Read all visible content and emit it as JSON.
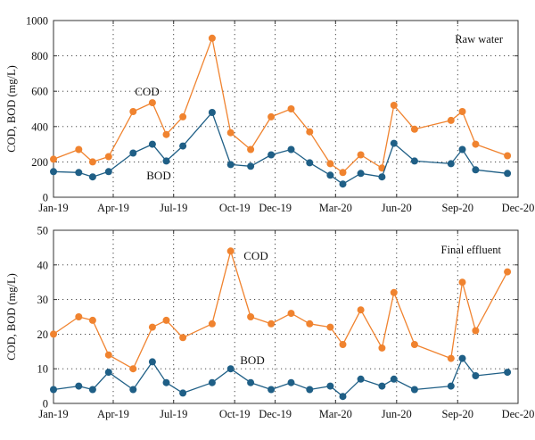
{
  "chart_data": [
    {
      "type": "line",
      "title": "Raw water",
      "ylabel": "COD, BOD (mg/L)",
      "ylim": [
        0,
        1000
      ],
      "yticks": [
        0,
        200,
        400,
        600,
        800,
        1000
      ],
      "xlim": [
        "2019-01",
        "2020-12"
      ],
      "xticks": [
        "Jan-19",
        "Apr-19",
        "Jul-19",
        "Oct-19",
        "Dec-19",
        "Mar-20",
        "Jun-20",
        "Sep-20",
        "Dec-20"
      ],
      "grid": true,
      "series": [
        {
          "name": "COD",
          "color": "#f0832f",
          "points": [
            [
              "2019-01-01",
              215
            ],
            [
              "2019-02-08",
              270
            ],
            [
              "2019-03-01",
              200
            ],
            [
              "2019-03-25",
              230
            ],
            [
              "2019-05-01",
              485
            ],
            [
              "2019-05-30",
              535
            ],
            [
              "2019-06-20",
              355
            ],
            [
              "2019-07-15",
              455
            ],
            [
              "2019-08-28",
              900
            ],
            [
              "2019-09-25",
              365
            ],
            [
              "2019-10-25",
              270
            ],
            [
              "2019-11-25",
              455
            ],
            [
              "2019-12-25",
              500
            ],
            [
              "2020-01-22",
              370
            ],
            [
              "2020-02-22",
              190
            ],
            [
              "2020-03-12",
              140
            ],
            [
              "2020-04-08",
              240
            ],
            [
              "2020-05-10",
              165
            ],
            [
              "2020-05-28",
              520
            ],
            [
              "2020-06-28",
              385
            ],
            [
              "2020-08-22",
              435
            ],
            [
              "2020-09-08",
              485
            ],
            [
              "2020-09-28",
              300
            ],
            [
              "2020-11-15",
              235
            ]
          ]
        },
        {
          "name": "BOD",
          "color": "#1f5f86",
          "points": [
            [
              "2019-01-01",
              145
            ],
            [
              "2019-02-08",
              140
            ],
            [
              "2019-03-01",
              115
            ],
            [
              "2019-03-25",
              145
            ],
            [
              "2019-05-01",
              250
            ],
            [
              "2019-05-30",
              300
            ],
            [
              "2019-06-20",
              205
            ],
            [
              "2019-07-15",
              290
            ],
            [
              "2019-08-28",
              480
            ],
            [
              "2019-09-25",
              185
            ],
            [
              "2019-10-25",
              175
            ],
            [
              "2019-11-25",
              240
            ],
            [
              "2019-12-25",
              270
            ],
            [
              "2020-01-22",
              195
            ],
            [
              "2020-02-22",
              125
            ],
            [
              "2020-03-12",
              75
            ],
            [
              "2020-04-08",
              135
            ],
            [
              "2020-05-10",
              115
            ],
            [
              "2020-05-28",
              305
            ],
            [
              "2020-06-28",
              205
            ],
            [
              "2020-08-22",
              190
            ],
            [
              "2020-09-08",
              270
            ],
            [
              "2020-09-28",
              155
            ],
            [
              "2020-11-15",
              135
            ]
          ]
        }
      ]
    },
    {
      "type": "line",
      "title": "Final effluent",
      "ylabel": "COD, BOD (mg/L)",
      "ylim": [
        0,
        50
      ],
      "yticks": [
        0,
        10,
        20,
        30,
        40,
        50
      ],
      "xlim": [
        "2019-01",
        "2020-12"
      ],
      "xticks": [
        "Jan-19",
        "Apr-19",
        "Jul-19",
        "Oct-19",
        "Dec-19",
        "Mar-20",
        "Jun-20",
        "Sep-20",
        "Dec-20"
      ],
      "grid": true,
      "series": [
        {
          "name": "COD",
          "color": "#f0832f",
          "points": [
            [
              "2019-01-01",
              20
            ],
            [
              "2019-02-08",
              25
            ],
            [
              "2019-03-01",
              24
            ],
            [
              "2019-03-25",
              14
            ],
            [
              "2019-05-01",
              10
            ],
            [
              "2019-05-30",
              22
            ],
            [
              "2019-06-20",
              24
            ],
            [
              "2019-07-15",
              19
            ],
            [
              "2019-08-28",
              23
            ],
            [
              "2019-09-25",
              44
            ],
            [
              "2019-10-25",
              25
            ],
            [
              "2019-11-25",
              23
            ],
            [
              "2019-12-25",
              26
            ],
            [
              "2020-01-22",
              23
            ],
            [
              "2020-02-22",
              22
            ],
            [
              "2020-03-12",
              17
            ],
            [
              "2020-04-08",
              27
            ],
            [
              "2020-05-10",
              16
            ],
            [
              "2020-05-28",
              32
            ],
            [
              "2020-06-28",
              17
            ],
            [
              "2020-08-22",
              13
            ],
            [
              "2020-09-08",
              35
            ],
            [
              "2020-09-28",
              21
            ],
            [
              "2020-11-15",
              38
            ]
          ]
        },
        {
          "name": "BOD",
          "color": "#1f5f86",
          "points": [
            [
              "2019-01-01",
              4
            ],
            [
              "2019-02-08",
              5
            ],
            [
              "2019-03-01",
              4
            ],
            [
              "2019-03-25",
              9
            ],
            [
              "2019-05-01",
              4
            ],
            [
              "2019-05-30",
              12
            ],
            [
              "2019-06-20",
              6
            ],
            [
              "2019-07-15",
              3
            ],
            [
              "2019-08-28",
              6
            ],
            [
              "2019-09-25",
              10
            ],
            [
              "2019-10-25",
              6
            ],
            [
              "2019-11-25",
              4
            ],
            [
              "2019-12-25",
              6
            ],
            [
              "2020-01-22",
              4
            ],
            [
              "2020-02-22",
              5
            ],
            [
              "2020-03-12",
              2
            ],
            [
              "2020-04-08",
              7
            ],
            [
              "2020-05-10",
              5
            ],
            [
              "2020-05-28",
              7
            ],
            [
              "2020-06-28",
              4
            ],
            [
              "2020-08-22",
              5
            ],
            [
              "2020-09-08",
              13
            ],
            [
              "2020-09-28",
              8
            ],
            [
              "2020-11-15",
              9
            ]
          ]
        }
      ]
    }
  ]
}
